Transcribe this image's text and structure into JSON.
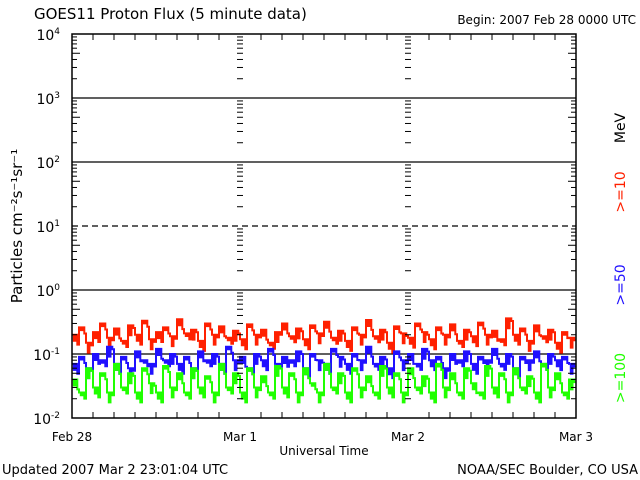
{
  "chart_data": {
    "type": "line",
    "title": "GOES11 Proton Flux (5 minute data)",
    "begin_label": "Begin: 2007 Feb 28 0000 UTC",
    "xlabel": "Universal Time",
    "ylabel": "Particles cm⁻²s⁻¹sr⁻¹",
    "yscale": "log",
    "ylim": [
      0.01,
      10000
    ],
    "xlim_hours": [
      0,
      72
    ],
    "x_ticks": [
      "Feb 28",
      "Mar 1",
      "Mar 2",
      "Mar 3"
    ],
    "y_ticks": [
      {
        "base": "10",
        "exp": "-2"
      },
      {
        "base": "10",
        "exp": "-1"
      },
      {
        "base": "10",
        "exp": "0"
      },
      {
        "base": "10",
        "exp": "1"
      },
      {
        "base": "10",
        "exp": "2"
      },
      {
        "base": "10",
        "exp": "3"
      },
      {
        "base": "10",
        "exp": "4"
      }
    ],
    "grid": "horizontal at decades (10^1 dashed)",
    "unit_label": "MeV",
    "x_hours_step": 1,
    "series": [
      {
        "name": ">=10",
        "color": "#ff2000",
        "values": [
          0.2,
          0.26,
          0.15,
          0.22,
          0.3,
          0.18,
          0.25,
          0.16,
          0.28,
          0.2,
          0.33,
          0.17,
          0.22,
          0.26,
          0.19,
          0.35,
          0.21,
          0.24,
          0.16,
          0.3,
          0.2,
          0.27,
          0.18,
          0.23,
          0.17,
          0.29,
          0.2,
          0.24,
          0.15,
          0.22,
          0.3,
          0.19,
          0.25,
          0.17,
          0.28,
          0.21,
          0.32,
          0.18,
          0.23,
          0.16,
          0.26,
          0.2,
          0.34,
          0.19,
          0.24,
          0.15,
          0.27,
          0.21,
          0.18,
          0.3,
          0.22,
          0.17,
          0.26,
          0.2,
          0.29,
          0.16,
          0.24,
          0.19,
          0.31,
          0.2,
          0.23,
          0.17,
          0.36,
          0.2,
          0.25,
          0.16,
          0.28,
          0.19,
          0.24,
          0.15,
          0.22,
          0.18
        ]
      },
      {
        "name": ">=50",
        "color": "#2010ff",
        "values": [
          0.07,
          0.09,
          0.06,
          0.1,
          0.08,
          0.13,
          0.07,
          0.09,
          0.06,
          0.11,
          0.08,
          0.07,
          0.12,
          0.08,
          0.1,
          0.07,
          0.09,
          0.06,
          0.11,
          0.08,
          0.1,
          0.07,
          0.13,
          0.08,
          0.09,
          0.06,
          0.1,
          0.08,
          0.12,
          0.07,
          0.09,
          0.08,
          0.11,
          0.06,
          0.1,
          0.08,
          0.07,
          0.12,
          0.09,
          0.07,
          0.1,
          0.08,
          0.13,
          0.07,
          0.09,
          0.06,
          0.11,
          0.08,
          0.1,
          0.07,
          0.12,
          0.08,
          0.09,
          0.06,
          0.1,
          0.08,
          0.11,
          0.07,
          0.09,
          0.08,
          0.12,
          0.07,
          0.1,
          0.06,
          0.09,
          0.08,
          0.11,
          0.07,
          0.1,
          0.08,
          0.09,
          0.07
        ]
      },
      {
        "name": ">=100",
        "color": "#20ff00",
        "values": [
          0.04,
          0.025,
          0.06,
          0.03,
          0.05,
          0.025,
          0.07,
          0.03,
          0.05,
          0.025,
          0.06,
          0.035,
          0.025,
          0.065,
          0.03,
          0.05,
          0.025,
          0.06,
          0.03,
          0.045,
          0.025,
          0.07,
          0.03,
          0.05,
          0.025,
          0.06,
          0.03,
          0.045,
          0.025,
          0.065,
          0.03,
          0.05,
          0.025,
          0.06,
          0.035,
          0.025,
          0.07,
          0.03,
          0.05,
          0.025,
          0.06,
          0.03,
          0.045,
          0.025,
          0.065,
          0.03,
          0.05,
          0.025,
          0.06,
          0.03,
          0.045,
          0.025,
          0.07,
          0.03,
          0.05,
          0.025,
          0.06,
          0.035,
          0.025,
          0.065,
          0.03,
          0.05,
          0.025,
          0.06,
          0.03,
          0.045,
          0.025,
          0.07,
          0.03,
          0.05,
          0.025,
          0.04
        ]
      }
    ]
  },
  "footer": {
    "updated": "Updated 2007 Mar  2 23:01:04 UTC",
    "credit": "NOAA/SEC Boulder, CO USA"
  }
}
